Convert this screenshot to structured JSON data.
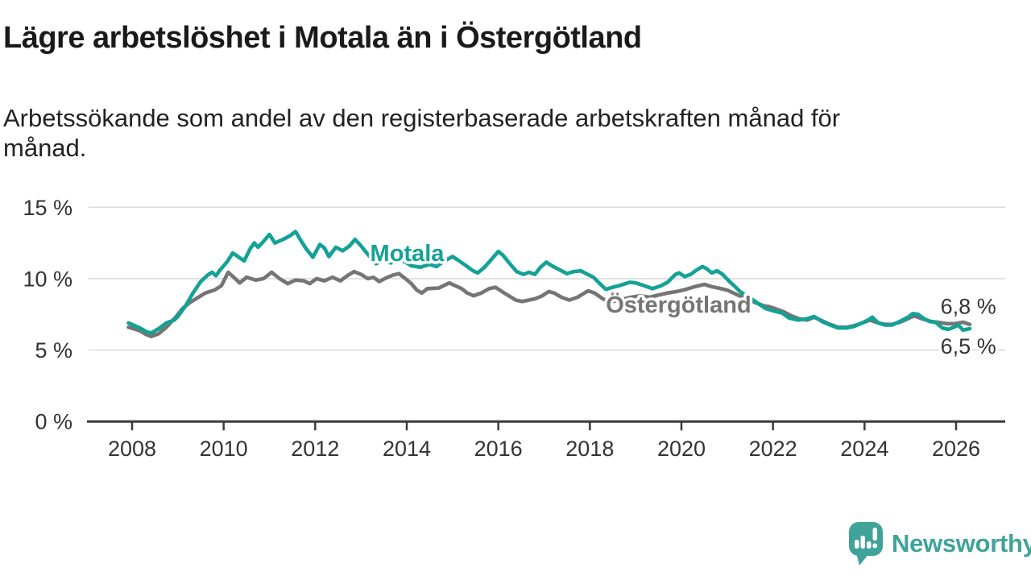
{
  "header": {
    "title": "Lägre arbetslöshet i Motala än i Östergötland",
    "subtitle": "Arbetssökande som andel av den registerbaserade arbetskraften månad för\nmånad."
  },
  "colors": {
    "motala": "#12a296",
    "ostergotland": "#757575",
    "grid": "#dcdcdc",
    "axis": "#3b3b3b",
    "tick_text": "#333333",
    "title_text": "#1a1a1a",
    "brand": "#3fa39a"
  },
  "footer": {
    "brand": "Newsworthy"
  },
  "chart_data": {
    "type": "line",
    "title": "Lägre arbetslöshet i Motala än i Östergötland",
    "subtitle": "Arbetssökande som andel av den registerbaserade arbetskraften månad för månad.",
    "unit": "%",
    "grid": true,
    "legend": "inline-labels",
    "x_axis": {
      "ticks": [
        2008,
        2010,
        2012,
        2014,
        2016,
        2018,
        2020,
        2022,
        2024,
        2026
      ],
      "labels": [
        "2008",
        "2010",
        "2012",
        "2014",
        "2016",
        "2018",
        "2020",
        "2022",
        "2024",
        "2026"
      ],
      "range": [
        2007.9,
        2026.35
      ]
    },
    "y_axis": {
      "ticks": [
        0,
        5,
        10,
        15
      ],
      "labels": [
        "0 %",
        "5 %",
        "10 %",
        "15 %"
      ],
      "range": [
        0,
        15
      ]
    },
    "series": [
      {
        "name": "Motala",
        "color": "#12a296",
        "end_label": "6,5 %",
        "end_value": 6.5,
        "points": [
          [
            2007.92,
            6.9
          ],
          [
            2008.17,
            6.55
          ],
          [
            2008.33,
            6.25
          ],
          [
            2008.42,
            6.2
          ],
          [
            2008.58,
            6.5
          ],
          [
            2008.75,
            6.9
          ],
          [
            2008.92,
            7.1
          ],
          [
            2009.0,
            7.35
          ],
          [
            2009.17,
            8.1
          ],
          [
            2009.33,
            9.0
          ],
          [
            2009.5,
            9.8
          ],
          [
            2009.67,
            10.3
          ],
          [
            2009.75,
            10.45
          ],
          [
            2009.83,
            10.2
          ],
          [
            2009.92,
            10.6
          ],
          [
            2010.08,
            11.2
          ],
          [
            2010.2,
            11.8
          ],
          [
            2010.33,
            11.5
          ],
          [
            2010.45,
            11.25
          ],
          [
            2010.58,
            12.1
          ],
          [
            2010.67,
            12.5
          ],
          [
            2010.75,
            12.2
          ],
          [
            2010.87,
            12.6
          ],
          [
            2011.0,
            13.1
          ],
          [
            2011.12,
            12.5
          ],
          [
            2011.3,
            12.75
          ],
          [
            2011.45,
            13.0
          ],
          [
            2011.57,
            13.3
          ],
          [
            2011.7,
            12.6
          ],
          [
            2011.8,
            12.1
          ],
          [
            2011.95,
            11.5
          ],
          [
            2012.1,
            12.4
          ],
          [
            2012.2,
            12.15
          ],
          [
            2012.3,
            11.55
          ],
          [
            2012.45,
            12.2
          ],
          [
            2012.6,
            11.95
          ],
          [
            2012.75,
            12.3
          ],
          [
            2012.87,
            12.75
          ],
          [
            2013.0,
            12.3
          ],
          [
            2013.15,
            11.7
          ],
          [
            2013.33,
            11.05
          ],
          [
            2013.5,
            11.3
          ],
          [
            2013.65,
            11.1
          ],
          [
            2013.8,
            11.4
          ],
          [
            2013.95,
            11.2
          ],
          [
            2014.1,
            10.9
          ],
          [
            2014.3,
            10.8
          ],
          [
            2014.5,
            11.0
          ],
          [
            2014.65,
            10.85
          ],
          [
            2014.8,
            11.2
          ],
          [
            2015.0,
            11.55
          ],
          [
            2015.12,
            11.3
          ],
          [
            2015.3,
            10.9
          ],
          [
            2015.45,
            10.55
          ],
          [
            2015.55,
            10.4
          ],
          [
            2015.7,
            10.8
          ],
          [
            2015.85,
            11.35
          ],
          [
            2016.0,
            11.9
          ],
          [
            2016.1,
            11.65
          ],
          [
            2016.25,
            11.05
          ],
          [
            2016.4,
            10.5
          ],
          [
            2016.55,
            10.3
          ],
          [
            2016.67,
            10.45
          ],
          [
            2016.8,
            10.3
          ],
          [
            2016.92,
            10.8
          ],
          [
            2017.05,
            11.15
          ],
          [
            2017.2,
            10.85
          ],
          [
            2017.35,
            10.6
          ],
          [
            2017.5,
            10.35
          ],
          [
            2017.65,
            10.5
          ],
          [
            2017.8,
            10.55
          ],
          [
            2017.92,
            10.35
          ],
          [
            2018.08,
            10.1
          ],
          [
            2018.2,
            9.7
          ],
          [
            2018.35,
            9.25
          ],
          [
            2018.5,
            9.4
          ],
          [
            2018.63,
            9.5
          ],
          [
            2018.87,
            9.75
          ],
          [
            2019.0,
            9.7
          ],
          [
            2019.15,
            9.55
          ],
          [
            2019.37,
            9.3
          ],
          [
            2019.55,
            9.5
          ],
          [
            2019.7,
            9.75
          ],
          [
            2019.87,
            10.3
          ],
          [
            2019.95,
            10.4
          ],
          [
            2020.07,
            10.15
          ],
          [
            2020.2,
            10.3
          ],
          [
            2020.33,
            10.6
          ],
          [
            2020.46,
            10.85
          ],
          [
            2020.55,
            10.7
          ],
          [
            2020.66,
            10.4
          ],
          [
            2020.78,
            10.55
          ],
          [
            2020.9,
            10.3
          ],
          [
            2021.05,
            9.8
          ],
          [
            2021.17,
            9.45
          ],
          [
            2021.28,
            9.1
          ],
          [
            2021.42,
            8.8
          ],
          [
            2021.57,
            8.5
          ],
          [
            2021.7,
            8.2
          ],
          [
            2021.85,
            7.9
          ],
          [
            2022.0,
            7.75
          ],
          [
            2022.2,
            7.6
          ],
          [
            2022.35,
            7.25
          ],
          [
            2022.55,
            7.1
          ],
          [
            2022.75,
            7.2
          ],
          [
            2022.9,
            7.35
          ],
          [
            2023.07,
            7.0
          ],
          [
            2023.25,
            6.75
          ],
          [
            2023.42,
            6.55
          ],
          [
            2023.6,
            6.55
          ],
          [
            2023.77,
            6.65
          ],
          [
            2023.95,
            6.9
          ],
          [
            2024.1,
            7.15
          ],
          [
            2024.17,
            7.3
          ],
          [
            2024.3,
            6.9
          ],
          [
            2024.45,
            6.75
          ],
          [
            2024.6,
            6.75
          ],
          [
            2024.77,
            7.0
          ],
          [
            2024.95,
            7.3
          ],
          [
            2025.05,
            7.55
          ],
          [
            2025.17,
            7.5
          ],
          [
            2025.3,
            7.2
          ],
          [
            2025.42,
            7.0
          ],
          [
            2025.55,
            6.95
          ],
          [
            2025.7,
            6.55
          ],
          [
            2025.83,
            6.45
          ],
          [
            2025.95,
            6.6
          ],
          [
            2026.05,
            6.75
          ],
          [
            2026.15,
            6.4
          ],
          [
            2026.3,
            6.5
          ]
        ]
      },
      {
        "name": "Östergötland",
        "color": "#757575",
        "end_label": "6,8 %",
        "end_value": 6.8,
        "points": [
          [
            2007.92,
            6.6
          ],
          [
            2008.17,
            6.35
          ],
          [
            2008.3,
            6.1
          ],
          [
            2008.42,
            5.95
          ],
          [
            2008.58,
            6.15
          ],
          [
            2008.75,
            6.6
          ],
          [
            2008.95,
            7.3
          ],
          [
            2009.1,
            7.9
          ],
          [
            2009.25,
            8.3
          ],
          [
            2009.45,
            8.7
          ],
          [
            2009.6,
            9.0
          ],
          [
            2009.8,
            9.2
          ],
          [
            2009.95,
            9.5
          ],
          [
            2010.1,
            10.45
          ],
          [
            2010.22,
            10.1
          ],
          [
            2010.35,
            9.7
          ],
          [
            2010.5,
            10.1
          ],
          [
            2010.7,
            9.9
          ],
          [
            2010.87,
            10.0
          ],
          [
            2011.05,
            10.45
          ],
          [
            2011.22,
            10.0
          ],
          [
            2011.4,
            9.65
          ],
          [
            2011.57,
            9.9
          ],
          [
            2011.75,
            9.85
          ],
          [
            2011.88,
            9.65
          ],
          [
            2012.03,
            10.0
          ],
          [
            2012.2,
            9.85
          ],
          [
            2012.38,
            10.1
          ],
          [
            2012.55,
            9.85
          ],
          [
            2012.72,
            10.25
          ],
          [
            2012.85,
            10.5
          ],
          [
            2013.0,
            10.3
          ],
          [
            2013.15,
            10.0
          ],
          [
            2013.27,
            10.1
          ],
          [
            2013.4,
            9.8
          ],
          [
            2013.55,
            10.05
          ],
          [
            2013.7,
            10.25
          ],
          [
            2013.83,
            10.35
          ],
          [
            2013.97,
            10.0
          ],
          [
            2014.1,
            9.65
          ],
          [
            2014.22,
            9.2
          ],
          [
            2014.33,
            9.0
          ],
          [
            2014.45,
            9.3
          ],
          [
            2014.7,
            9.35
          ],
          [
            2014.93,
            9.7
          ],
          [
            2015.03,
            9.55
          ],
          [
            2015.2,
            9.3
          ],
          [
            2015.32,
            9.0
          ],
          [
            2015.46,
            8.8
          ],
          [
            2015.63,
            9.0
          ],
          [
            2015.8,
            9.3
          ],
          [
            2015.94,
            9.4
          ],
          [
            2016.08,
            9.1
          ],
          [
            2016.23,
            8.8
          ],
          [
            2016.38,
            8.5
          ],
          [
            2016.52,
            8.4
          ],
          [
            2016.67,
            8.5
          ],
          [
            2016.81,
            8.6
          ],
          [
            2016.96,
            8.8
          ],
          [
            2017.1,
            9.1
          ],
          [
            2017.22,
            9.0
          ],
          [
            2017.38,
            8.7
          ],
          [
            2017.55,
            8.5
          ],
          [
            2017.73,
            8.7
          ],
          [
            2017.96,
            9.15
          ],
          [
            2018.1,
            9.0
          ],
          [
            2018.3,
            8.55
          ],
          [
            2018.5,
            8.4
          ],
          [
            2018.7,
            8.55
          ],
          [
            2018.9,
            8.7
          ],
          [
            2019.1,
            8.8
          ],
          [
            2019.3,
            8.7
          ],
          [
            2019.5,
            8.85
          ],
          [
            2019.7,
            9.0
          ],
          [
            2019.9,
            9.1
          ],
          [
            2020.1,
            9.25
          ],
          [
            2020.3,
            9.45
          ],
          [
            2020.5,
            9.6
          ],
          [
            2020.65,
            9.45
          ],
          [
            2020.8,
            9.35
          ],
          [
            2021.0,
            9.2
          ],
          [
            2021.2,
            8.9
          ],
          [
            2021.4,
            8.6
          ],
          [
            2021.6,
            8.35
          ],
          [
            2021.8,
            8.1
          ],
          [
            2021.9,
            8.05
          ],
          [
            2022.05,
            7.9
          ],
          [
            2022.22,
            7.7
          ],
          [
            2022.4,
            7.4
          ],
          [
            2022.57,
            7.2
          ],
          [
            2022.75,
            7.1
          ],
          [
            2022.9,
            7.3
          ],
          [
            2023.07,
            7.05
          ],
          [
            2023.25,
            6.8
          ],
          [
            2023.42,
            6.6
          ],
          [
            2023.6,
            6.6
          ],
          [
            2023.77,
            6.7
          ],
          [
            2023.95,
            6.9
          ],
          [
            2024.12,
            7.1
          ],
          [
            2024.3,
            6.9
          ],
          [
            2024.45,
            6.8
          ],
          [
            2024.6,
            6.8
          ],
          [
            2024.77,
            6.95
          ],
          [
            2024.95,
            7.2
          ],
          [
            2025.08,
            7.4
          ],
          [
            2025.25,
            7.2
          ],
          [
            2025.45,
            7.0
          ],
          [
            2025.6,
            6.95
          ],
          [
            2025.8,
            6.85
          ],
          [
            2025.97,
            6.85
          ],
          [
            2026.15,
            6.95
          ],
          [
            2026.3,
            6.8
          ]
        ]
      }
    ],
    "series_labels": [
      {
        "text": "Motala",
        "year": 2013.2,
        "value": 11.8,
        "color": "#12a296"
      },
      {
        "text": "Östergötland",
        "year": 2018.35,
        "value": 8.2,
        "color": "#757575"
      }
    ],
    "end_annotations": [
      {
        "text": "6,8 %",
        "year": 2025.66,
        "value": 8.05
      },
      {
        "text": "6,5 %",
        "year": 2025.66,
        "value": 5.25
      }
    ]
  }
}
